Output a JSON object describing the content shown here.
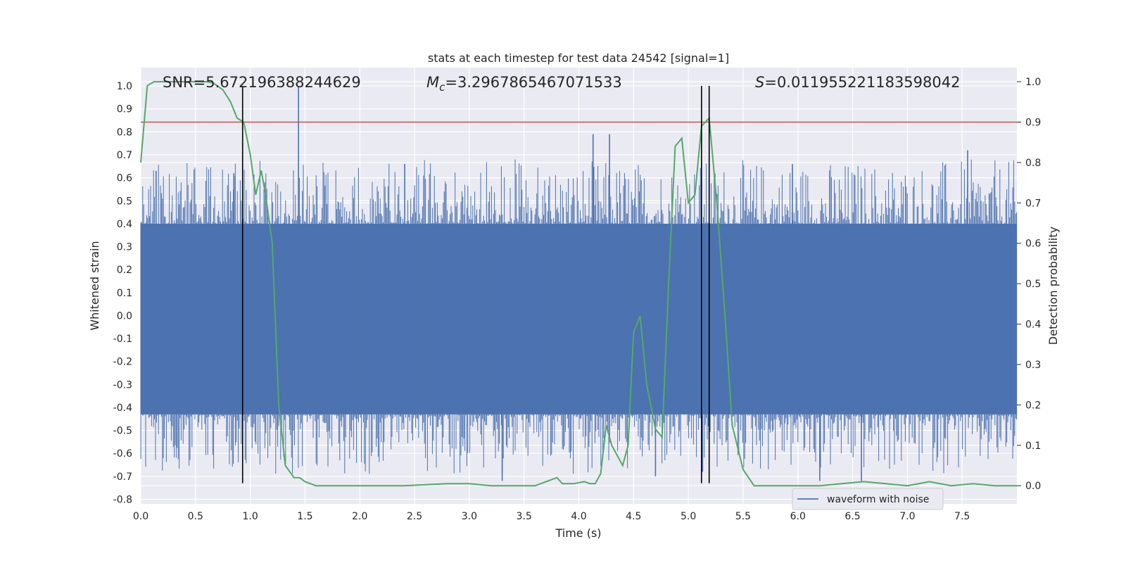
{
  "chart_data": {
    "type": "line",
    "title": "stats at each timestep for test data 24542 [signal=1]",
    "xlabel": "Time (s)",
    "ylabel": "Whitened strain",
    "ylabel_right": "Detection probability",
    "xlim": [
      0.0,
      8.0
    ],
    "ylim": [
      -0.82,
      1.08
    ],
    "ylim_right": [
      -0.045,
      1.035
    ],
    "xticks": [
      "0.0",
      "0.5",
      "1.0",
      "1.5",
      "2.0",
      "2.5",
      "3.0",
      "3.5",
      "4.0",
      "4.5",
      "5.0",
      "5.5",
      "6.0",
      "6.5",
      "7.0",
      "7.5"
    ],
    "yticks": [
      "-0.8",
      "-0.7",
      "-0.6",
      "-0.5",
      "-0.4",
      "-0.3",
      "-0.2",
      "-0.1",
      "0.0",
      "0.1",
      "0.2",
      "0.3",
      "0.4",
      "0.5",
      "0.6",
      "0.7",
      "0.8",
      "0.9",
      "1.0"
    ],
    "yticks_right": [
      "0.0",
      "0.1",
      "0.2",
      "0.3",
      "0.4",
      "0.5",
      "0.6",
      "0.7",
      "0.8",
      "0.9",
      "1.0"
    ],
    "annotations": {
      "snr": "SNR=5.672196388244629",
      "mc_symbol": "M",
      "mc_sub": "c",
      "mc_value": "=3.2967865467071533",
      "s_symbol": "S",
      "s_value": "=0.011955221183598042"
    },
    "legend": {
      "label": "waveform with noise",
      "placement": "lower-right"
    },
    "threshold": 0.9,
    "vlines_x": [
      0.93,
      5.12,
      5.19
    ],
    "vline_ylim": [
      -0.73,
      1.0
    ],
    "series": [
      {
        "name": "waveform with noise",
        "color": "#4c72b0",
        "envelope_upper": 0.4,
        "envelope_lower": -0.43,
        "spikes": [
          {
            "t": 1.44,
            "v": 1.0
          },
          {
            "t": 4.13,
            "v": 0.79
          },
          {
            "t": 4.28,
            "v": 0.79
          },
          {
            "t": 0.14,
            "v": 0.63
          },
          {
            "t": 2.41,
            "v": 0.66
          },
          {
            "t": 3.3,
            "v": -0.72
          },
          {
            "t": 4.7,
            "v": -0.7
          },
          {
            "t": 5.13,
            "v": -0.68
          },
          {
            "t": 6.2,
            "v": -0.72
          },
          {
            "t": 6.58,
            "v": -0.72
          },
          {
            "t": 7.55,
            "v": 0.72
          },
          {
            "t": 0.85,
            "v": 0.62
          },
          {
            "t": 5.95,
            "v": 0.66
          }
        ]
      },
      {
        "name": "Detection probability",
        "color": "#55a868",
        "x": [
          0.0,
          0.06,
          0.12,
          0.2,
          0.3,
          0.4,
          0.5,
          0.6,
          0.66,
          0.75,
          0.82,
          0.88,
          0.94,
          1.0,
          1.05,
          1.1,
          1.14,
          1.2,
          1.26,
          1.32,
          1.4,
          1.45,
          1.5,
          1.6,
          1.8,
          2.0,
          2.4,
          2.8,
          3.0,
          3.2,
          3.6,
          3.7,
          3.8,
          3.85,
          3.95,
          4.05,
          4.1,
          4.15,
          4.2,
          4.25,
          4.3,
          4.4,
          4.45,
          4.5,
          4.56,
          4.62,
          4.7,
          4.76,
          4.82,
          4.88,
          4.94,
          5.0,
          5.06,
          5.12,
          5.19,
          5.26,
          5.34,
          5.4,
          5.5,
          5.6,
          5.8,
          6.0,
          6.2,
          6.4,
          6.6,
          6.8,
          7.0,
          7.2,
          7.4,
          7.6,
          7.8,
          8.0
        ],
        "y": [
          0.8,
          0.99,
          1.0,
          1.0,
          1.0,
          1.0,
          1.0,
          1.0,
          0.997,
          0.98,
          0.95,
          0.91,
          0.9,
          0.82,
          0.72,
          0.78,
          0.72,
          0.6,
          0.2,
          0.05,
          0.02,
          0.02,
          0.01,
          0.0,
          0.0,
          0.0,
          0.0,
          0.005,
          0.005,
          0.0,
          0.0,
          0.01,
          0.02,
          0.005,
          0.005,
          0.01,
          0.005,
          0.005,
          0.03,
          0.15,
          0.1,
          0.05,
          0.1,
          0.38,
          0.42,
          0.25,
          0.14,
          0.12,
          0.5,
          0.84,
          0.86,
          0.7,
          0.72,
          0.89,
          0.91,
          0.7,
          0.4,
          0.15,
          0.04,
          0.0,
          0.0,
          0.0,
          0.0,
          0.005,
          0.01,
          0.005,
          0.0,
          0.01,
          0.0,
          0.005,
          0.0,
          0.0
        ]
      }
    ]
  }
}
